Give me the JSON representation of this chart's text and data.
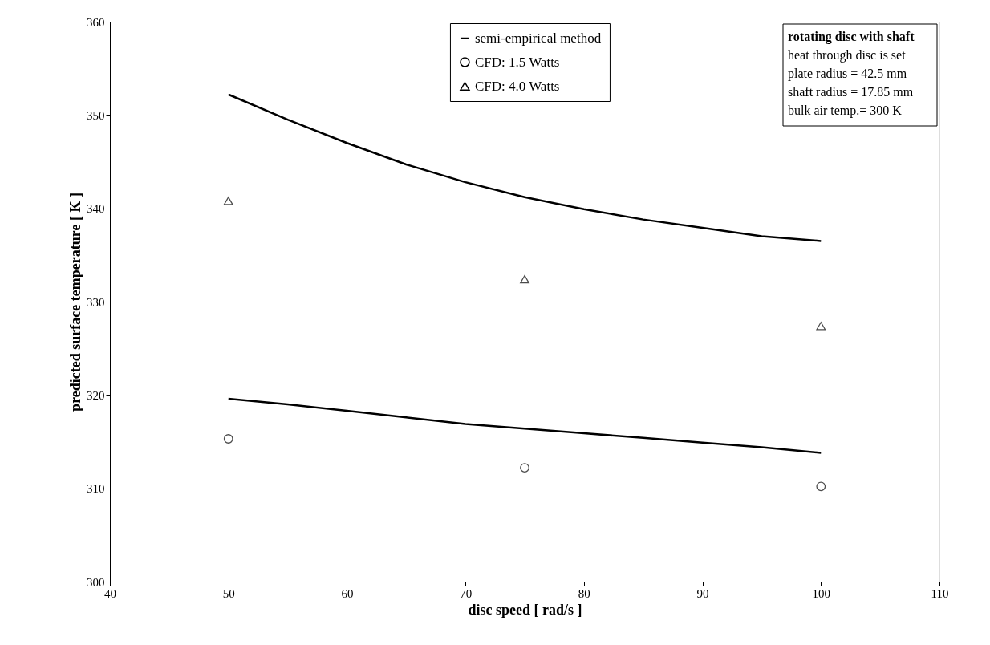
{
  "chart_data": {
    "type": "line",
    "xlabel": "disc speed [ rad/s ]",
    "ylabel": "predicted surface temperature [ K ]",
    "xlim": [
      40,
      110
    ],
    "xticks": [
      40,
      50,
      60,
      70,
      80,
      90,
      100,
      110
    ],
    "ylim": [
      300,
      360
    ],
    "yticks": [
      300,
      310,
      320,
      330,
      340,
      350,
      360
    ],
    "grid": false,
    "legend": "top",
    "series": [
      {
        "name": "semi-empirical method",
        "color": "#000000",
        "x": [
          50,
          55,
          60,
          65,
          70,
          75,
          80,
          85,
          90,
          95,
          100
        ],
        "values": [
          352.2,
          349.5,
          347.0,
          344.7,
          342.8,
          341.2,
          339.9,
          338.8,
          337.9,
          337.0,
          336.5
        ]
      },
      {
        "color": "#000000",
        "x": [
          50,
          55,
          60,
          65,
          70,
          75,
          80,
          85,
          90,
          95,
          100
        ],
        "values": [
          319.6,
          319.0,
          318.3,
          317.6,
          316.9,
          316.4,
          315.9,
          315.4,
          314.9,
          314.4,
          313.8
        ]
      },
      {
        "name": "CFD: 1.5 Watts",
        "type": "scatter",
        "marker": "circle",
        "color": "#000000",
        "x": [
          50,
          75,
          100
        ],
        "values": [
          315.3,
          312.2,
          310.2
        ]
      },
      {
        "name": "CFD: 4.0 Watts",
        "type": "scatter",
        "marker": "triangle",
        "color": "#000000",
        "x": [
          50,
          75,
          100
        ],
        "values": [
          340.8,
          332.4,
          327.4
        ]
      }
    ],
    "annotations": [
      "rotating disc with shaft",
      "heat through disc is set",
      "plate radius = 42.5 mm",
      "shaft radius = 17.85 mm",
      "bulk air temp.= 300 K"
    ]
  }
}
